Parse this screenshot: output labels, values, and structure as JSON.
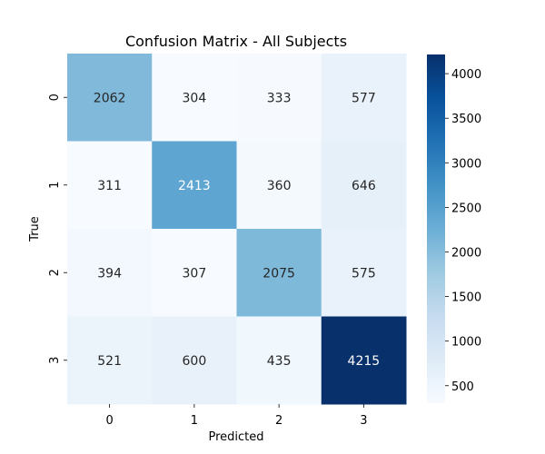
{
  "chart_data": {
    "type": "heatmap",
    "title": "Confusion Matrix - All Subjects",
    "xlabel": "Predicted",
    "ylabel": "True",
    "x_categories": [
      "0",
      "1",
      "2",
      "3"
    ],
    "y_categories": [
      "0",
      "1",
      "2",
      "3"
    ],
    "values": [
      [
        2062,
        304,
        333,
        577
      ],
      [
        311,
        2413,
        360,
        646
      ],
      [
        394,
        307,
        2075,
        575
      ],
      [
        521,
        600,
        435,
        4215
      ]
    ],
    "colormap": "Blues",
    "color_range": [
      304,
      4215
    ],
    "colorbar_ticks": [
      500,
      1000,
      1500,
      2000,
      2500,
      3000,
      3500,
      4000
    ],
    "colorbar_tick_labels": [
      "500",
      "1000",
      "1500",
      "2000",
      "2500",
      "3000",
      "3500",
      "4000"
    ]
  }
}
